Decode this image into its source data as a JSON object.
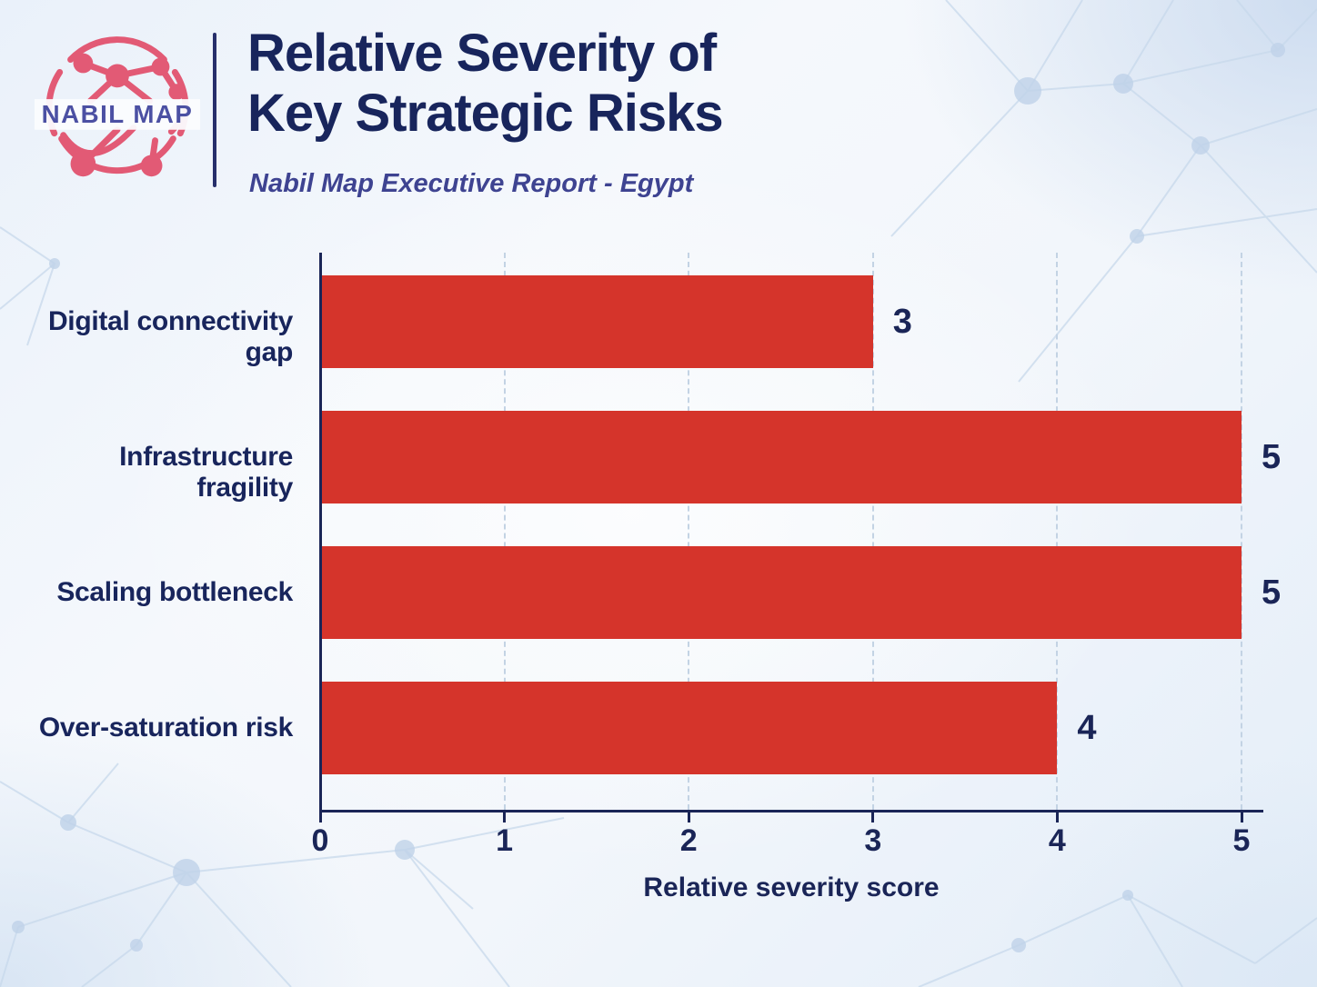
{
  "logo": {
    "brand": "NABIL MAP"
  },
  "header": {
    "title_line1": "Relative Severity of",
    "title_line2": "Key Strategic Risks",
    "subtitle": "Nabil Map Executive Report - Egypt"
  },
  "colors": {
    "bar": "#d5342b",
    "navy": "#1a2557",
    "title": "#18255c",
    "subtitle_text": "#3e4391",
    "gridline": "#c3d3e4",
    "logo_pink": "#e25a75",
    "logo_text": "#4b50a3",
    "background_blue": "#c7d8ee"
  },
  "chart_data": {
    "type": "bar",
    "orientation": "horizontal",
    "title": "Relative Severity of Key Strategic Risks",
    "subtitle": "Nabil Map Executive Report - Egypt",
    "categories": [
      "Digital connectivity gap",
      "Infrastructure fragility",
      "Scaling bottleneck",
      "Over-saturation risk"
    ],
    "values": [
      3,
      5,
      5,
      4
    ],
    "value_labels": [
      "3",
      "5",
      "5",
      "4"
    ],
    "xlabel": "Relative severity score",
    "ylabel": "",
    "xlim": [
      0,
      5
    ],
    "xticks": [
      0,
      1,
      2,
      3,
      4,
      5
    ],
    "grid": "vertical-dashed",
    "legend": "none",
    "bar_color": "#d5342b"
  }
}
